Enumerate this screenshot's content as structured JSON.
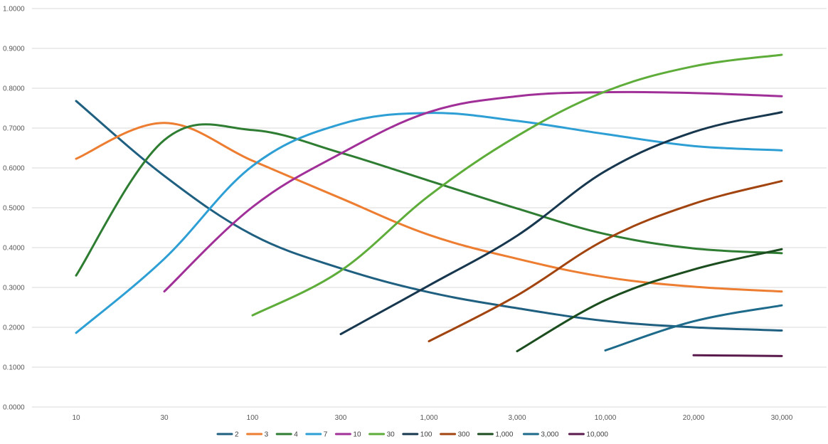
{
  "chart_data": {
    "type": "line",
    "title": "",
    "xlabel": "",
    "ylabel": "",
    "categories": [
      "10",
      "30",
      "100",
      "300",
      "1,000",
      "3,000",
      "10,000",
      "20,000",
      "30,000"
    ],
    "ylim": [
      0,
      1
    ],
    "y_ticks": [
      "0.0000",
      "0.1000",
      "0.2000",
      "0.3000",
      "0.4000",
      "0.5000",
      "0.6000",
      "0.7000",
      "0.8000",
      "0.9000",
      "1.0000"
    ],
    "grid": true,
    "smooth": true,
    "legend_position": "bottom",
    "series": [
      {
        "name": "2",
        "color": "#1f5f80",
        "values": [
          0.768,
          0.58,
          0.432,
          0.348,
          0.288,
          0.248,
          0.216,
          0.2,
          0.192
        ]
      },
      {
        "name": "3",
        "color": "#ed7d31",
        "values": [
          0.623,
          0.713,
          0.618,
          0.524,
          0.432,
          0.372,
          0.326,
          0.302,
          0.29
        ]
      },
      {
        "name": "4",
        "color": "#2e7d32",
        "values": [
          0.33,
          0.67,
          0.695,
          0.638,
          0.568,
          0.498,
          0.434,
          0.398,
          0.386
        ]
      },
      {
        "name": "7",
        "color": "#2e9fd4",
        "values": [
          0.186,
          0.372,
          0.605,
          0.71,
          0.738,
          0.718,
          0.685,
          0.655,
          0.644
        ]
      },
      {
        "name": "10",
        "color": "#a03098",
        "values": [
          null,
          0.29,
          0.502,
          0.636,
          0.74,
          0.78,
          0.79,
          0.788,
          0.78
        ]
      },
      {
        "name": "30",
        "color": "#5ead3a",
        "values": [
          null,
          null,
          0.23,
          0.342,
          0.53,
          0.68,
          0.792,
          0.855,
          0.884
        ]
      },
      {
        "name": "100",
        "color": "#17374f",
        "values": [
          null,
          null,
          null,
          0.183,
          0.305,
          0.43,
          0.592,
          0.69,
          0.74
        ]
      },
      {
        "name": "300",
        "color": "#a1440f",
        "values": [
          null,
          null,
          null,
          null,
          0.165,
          0.28,
          0.42,
          0.51,
          0.567
        ]
      },
      {
        "name": "1,000",
        "color": "#1b4d1f",
        "values": [
          null,
          null,
          null,
          null,
          null,
          0.14,
          0.268,
          0.345,
          0.396
        ]
      },
      {
        "name": "3,000",
        "color": "#1e6a8a",
        "values": [
          null,
          null,
          null,
          null,
          null,
          null,
          0.142,
          0.215,
          0.255
        ]
      },
      {
        "name": "10,000",
        "color": "#5a1a4c",
        "values": [
          null,
          null,
          null,
          null,
          null,
          null,
          null,
          0.13,
          0.128
        ]
      }
    ]
  }
}
